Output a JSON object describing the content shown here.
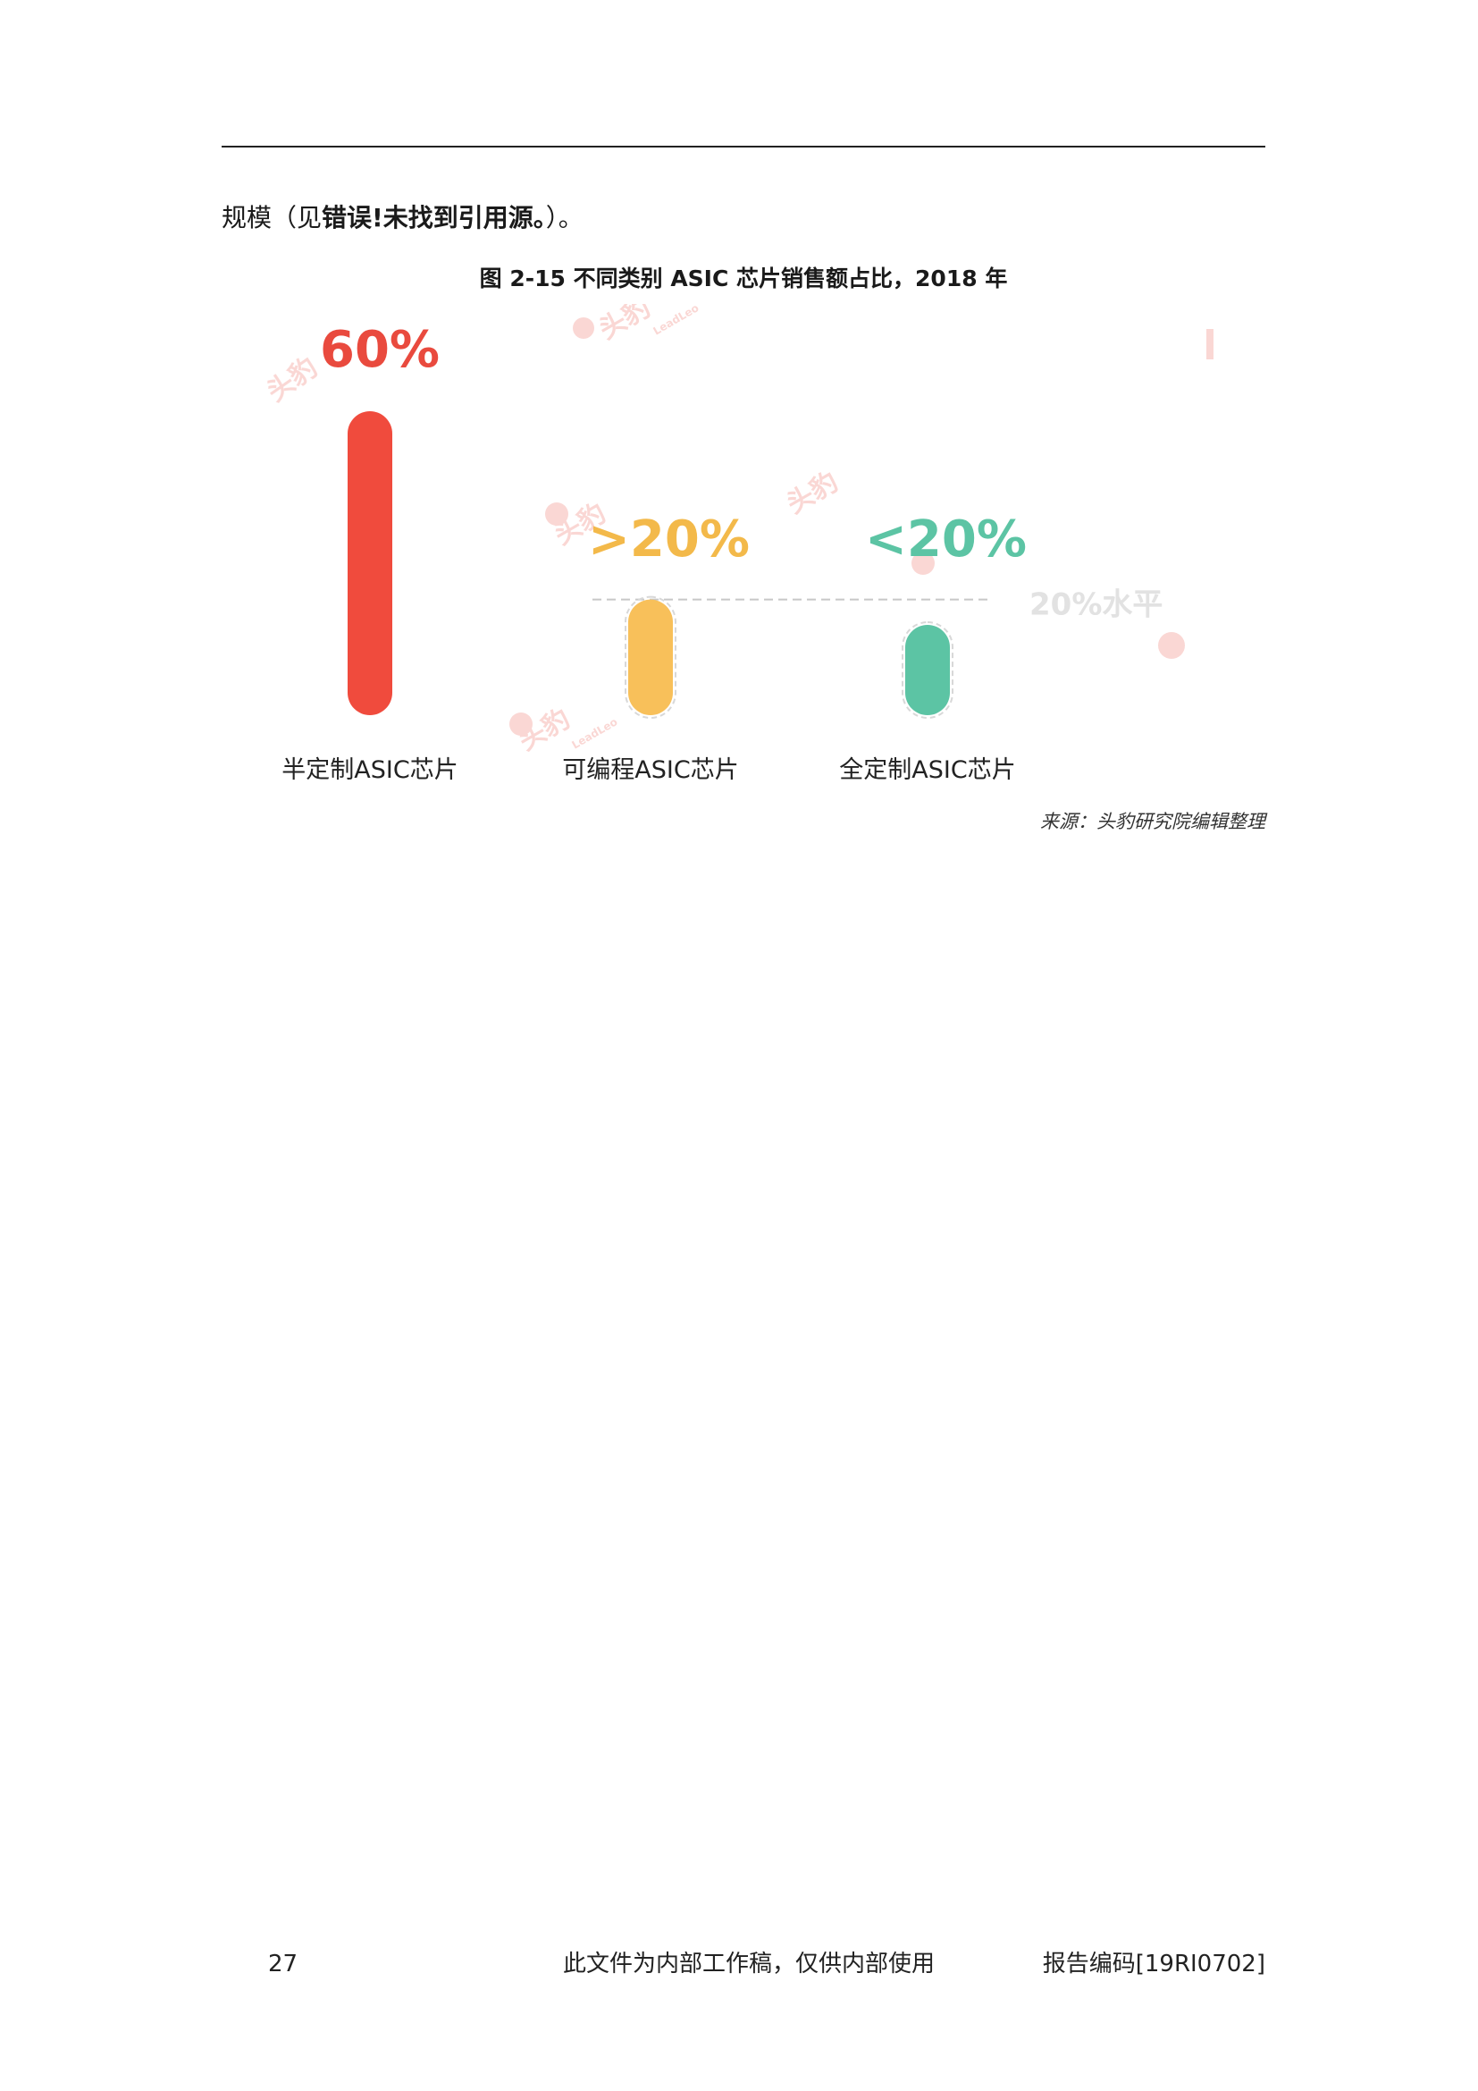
{
  "body": {
    "prefix": "规模（见",
    "bold": "错误!未找到引用源。",
    "suffix": "）。"
  },
  "figure": {
    "title": "图 2-15 不同类别 ASIC 芯片销售额占比，2018 年",
    "source": "来源：头豹研究院编辑整理"
  },
  "chart_data": {
    "type": "bar",
    "categories": [
      "半定制ASIC芯片",
      "可编程ASIC芯片",
      "全定制ASIC芯片"
    ],
    "values": [
      60,
      20,
      15
    ],
    "value_labels": [
      "60%",
      ">20%",
      "<20%"
    ],
    "colors": [
      "#f04b3d",
      "#f8c05a",
      "#5cc4a4"
    ],
    "value_label_colors": [
      "#e94a3e",
      "#f3b94a",
      "#5cc4a4"
    ],
    "reference_line": {
      "value": 20,
      "label": "20%水平"
    },
    "ylim": [
      0,
      60
    ]
  },
  "watermark": {
    "cn": "头豹",
    "en": "LeadLeo"
  },
  "footer": {
    "page_number": "27",
    "confidential": "此文件为内部工作稿，仅供内部使用",
    "report_code": "报告编码[19RI0702]"
  }
}
